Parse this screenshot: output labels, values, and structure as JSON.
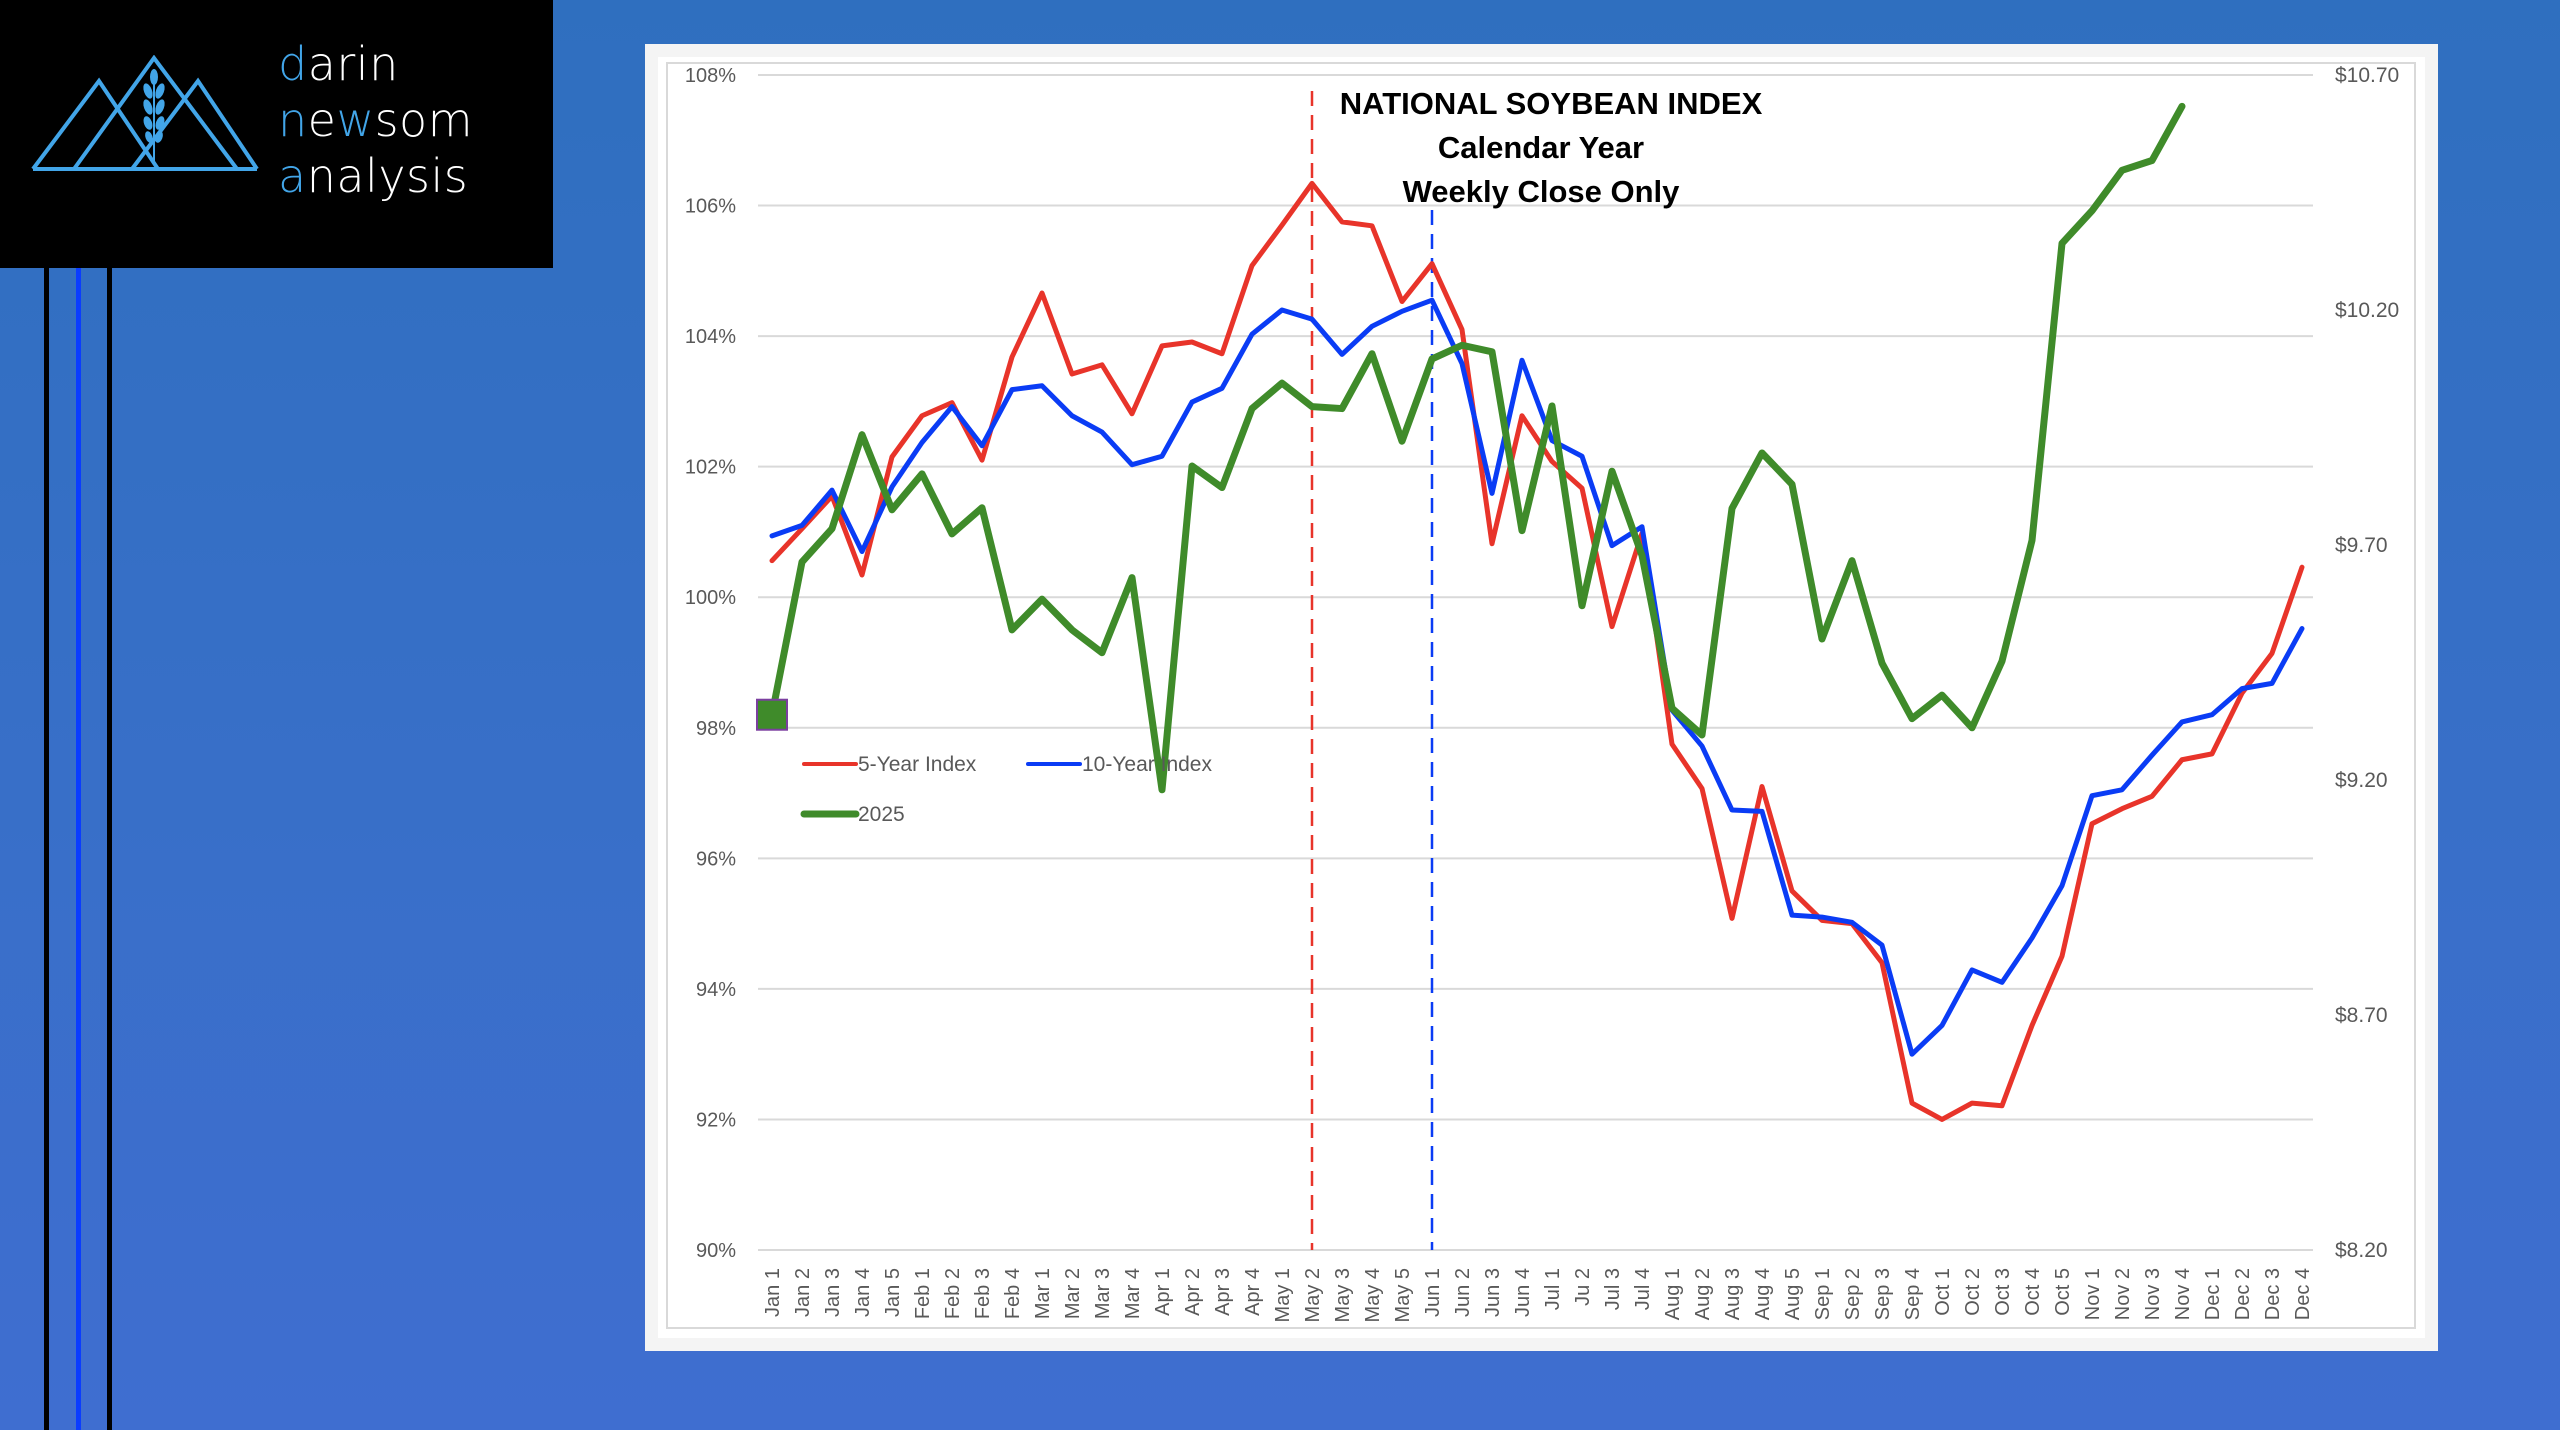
{
  "brand": {
    "lines": [
      {
        "accent": "d",
        "rest": "arin"
      },
      {
        "accent": "n",
        "rest": "e",
        "accent2": "w",
        "rest2": "som"
      },
      {
        "accent": "a",
        "rest": "nalysis"
      }
    ],
    "accent_color": "#42a5e8",
    "logo_icon": "mountains-wheat-icon"
  },
  "chart_data": {
    "type": "line",
    "title": "NATIONAL SOYBEAN INDEX",
    "subtitle_lines": [
      "Calendar Year",
      "Weekly Close Only"
    ],
    "xlabel": "",
    "ylabel": "",
    "y_left": {
      "range": [
        90,
        108
      ],
      "ticks": [
        90,
        92,
        94,
        96,
        98,
        100,
        102,
        104,
        106,
        108
      ],
      "tick_labels": [
        "90%",
        "92%",
        "94%",
        "96%",
        "98%",
        "100%",
        "102%",
        "104%",
        "106%",
        "108%"
      ]
    },
    "y_right": {
      "range": [
        8.2,
        10.7
      ],
      "ticks": [
        8.2,
        8.7,
        9.2,
        9.7,
        10.2,
        10.7
      ],
      "tick_labels": [
        "$8.20",
        "$8.70",
        "$9.20",
        "$9.70",
        "$10.20",
        "$10.70"
      ]
    },
    "grid": true,
    "legend": {
      "placement": "left-middle",
      "entries": [
        {
          "name": "5-Year Index",
          "color": "#e8342a"
        },
        {
          "name": "10-Year Index",
          "color": "#0a3cf5"
        },
        {
          "name": "2025",
          "color": "#3f8b2a"
        }
      ]
    },
    "categories": [
      "Jan 1",
      "Jan 2",
      "Jan 3",
      "Jan 4",
      "Jan 5",
      "Feb 1",
      "Feb 2",
      "Feb 3",
      "Feb 4",
      "Mar 1",
      "Mar 2",
      "Mar 3",
      "Mar 4",
      "Apr 1",
      "Apr 2",
      "Apr 3",
      "Apr 4",
      "May 1",
      "May 2",
      "May 3",
      "May 4",
      "May 5",
      "Jun 1",
      "Jun 2",
      "Jun 3",
      "Jun 4",
      "Jul 1",
      "Ju 2",
      "Jul 3",
      "Jul 4",
      "Aug 1",
      "Aug 2",
      "Aug 3",
      "Aug 4",
      "Aug 5",
      "Sep 1",
      "Sep 2",
      "Sep 3",
      "Sep 4",
      "Oct 1",
      "Oct 2",
      "Oct 3",
      "Oct 4",
      "Oct 5",
      "Nov 1",
      "Nov 2",
      "Nov 3",
      "Nov 4",
      "Dec 1",
      "Dec 2",
      "Dec 3",
      "Dec 4"
    ],
    "series": [
      {
        "name": "5-Year Index",
        "color": "#e8342a",
        "axis": "left",
        "values": [
          100.56,
          101.05,
          101.55,
          100.34,
          102.15,
          102.78,
          102.98,
          102.1,
          103.68,
          104.66,
          103.42,
          103.56,
          102.81,
          103.85,
          103.91,
          103.73,
          105.08,
          105.7,
          106.34,
          105.75,
          105.69,
          104.53,
          105.11,
          104.1,
          100.82,
          102.78,
          102.08,
          101.67,
          99.55,
          100.98,
          97.75,
          97.07,
          95.08,
          97.1,
          95.5,
          95.05,
          95.0,
          94.4,
          92.25,
          92.0,
          92.25,
          92.21,
          93.44,
          94.5,
          96.53,
          96.76,
          96.95,
          97.51,
          97.6,
          98.53,
          99.14,
          100.46
        ]
      },
      {
        "name": "10-Year Index",
        "color": "#0a3cf5",
        "axis": "left",
        "values": [
          100.94,
          101.1,
          101.64,
          100.7,
          101.69,
          102.37,
          102.92,
          102.32,
          103.18,
          103.24,
          102.78,
          102.53,
          102.03,
          102.16,
          102.99,
          103.2,
          104.03,
          104.4,
          104.26,
          103.72,
          104.15,
          104.38,
          104.55,
          103.58,
          101.59,
          103.63,
          102.4,
          102.16,
          100.79,
          101.08,
          98.27,
          97.72,
          96.74,
          96.72,
          95.13,
          95.1,
          95.02,
          94.67,
          93.0,
          93.44,
          94.29,
          94.1,
          94.78,
          95.58,
          96.96,
          97.05,
          97.58,
          98.09,
          98.2,
          98.6,
          98.68,
          99.52
        ]
      },
      {
        "name": "2025",
        "color": "#3f8b2a",
        "axis": "left",
        "values": [
          98.2,
          100.54,
          101.05,
          102.49,
          101.34,
          101.89,
          100.97,
          101.37,
          99.5,
          99.97,
          99.5,
          99.15,
          100.3,
          97.05,
          102.01,
          101.68,
          102.89,
          103.28,
          102.92,
          102.89,
          103.73,
          102.39,
          103.65,
          103.86,
          103.76,
          101.02,
          102.93,
          99.87,
          101.93,
          100.64,
          98.3,
          97.89,
          101.36,
          102.21,
          101.73,
          99.36,
          100.56,
          98.99,
          98.14,
          98.5,
          98.0,
          99.02,
          100.87,
          105.42,
          105.92,
          106.54,
          106.69,
          107.52,
          null,
          null,
          null,
          null
        ],
        "start_marker": "square"
      }
    ],
    "reference_lines": [
      {
        "category": "May 2",
        "color": "#e8342a",
        "style": "dashed"
      },
      {
        "category": "Jun 1",
        "color": "#0a3cf5",
        "style": "dashed"
      }
    ]
  }
}
